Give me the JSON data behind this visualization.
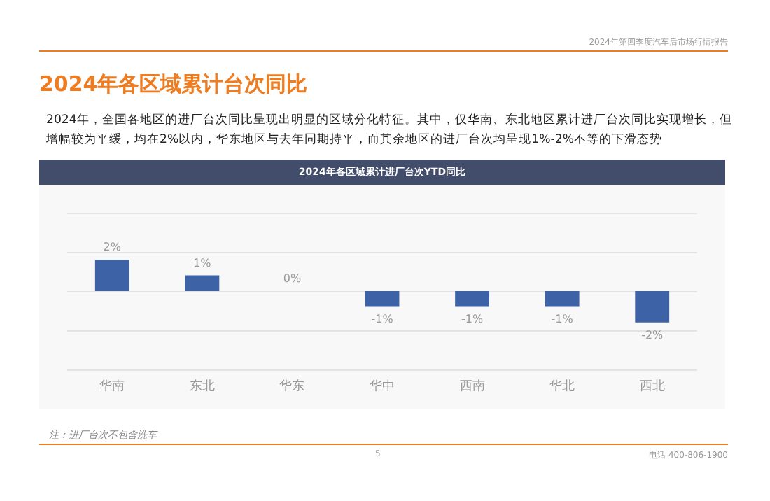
{
  "chart_data": {
    "type": "bar",
    "title": "2024年各区域累计进厂台次YTD同比",
    "annotations": [
      "2024年第四季度汽车后市场行情报告",
      "2024年各区域累计台次同比",
      "2024年，全国各地区的进厂台次同比呈现出明显的区域分化特征。其中，仅华南、东北地区累计进厂台次同比实现增长，但增幅较为平缓，均在2%以内，华东地区与去年同期持平，而其余地区的进厂台次均呈现1%-2%不等的下滑态势",
      "注：进厂台次不包含洗车",
      "5",
      "电话 400-806-1900"
    ],
    "categories": [
      "华南",
      "东北",
      "华东",
      "华中",
      "西南",
      "华北",
      "西北"
    ],
    "values": [
      2,
      1,
      0,
      -1,
      -1,
      -1,
      -2
    ],
    "value_labels": [
      "2%",
      "1%",
      "0%",
      "-1%",
      "-1%",
      "-1%",
      "-2%"
    ],
    "color": "#3d62a6",
    "ylim": [
      -5,
      5
    ],
    "yticks": [
      {
        "value": -5,
        "label": null
      },
      {
        "value": -2.5,
        "label": null
      },
      {
        "value": 0,
        "label": null
      },
      {
        "value": 2.5,
        "label": null
      },
      {
        "value": 5,
        "label": null
      }
    ],
    "grid": "y",
    "tick_labels": "x"
  }
}
